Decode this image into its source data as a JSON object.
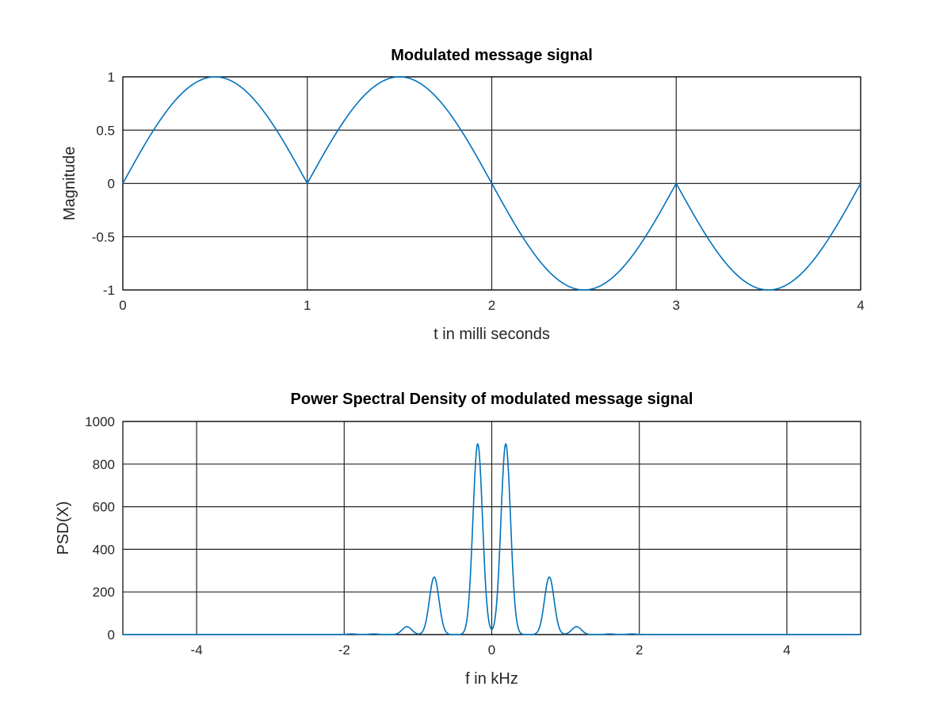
{
  "colors": {
    "line": "#0072BD",
    "grid": "#262626",
    "axes": "#000000",
    "background": "#ffffff"
  },
  "chart_data": [
    {
      "type": "line",
      "title": "Modulated message signal",
      "xlabel": "t in milli seconds",
      "ylabel": "Magnitude",
      "xlim": [
        0,
        4
      ],
      "ylim": [
        -1,
        1
      ],
      "xticks": [
        0,
        1,
        2,
        3,
        4
      ],
      "yticks": [
        -1,
        -0.5,
        0,
        0.5,
        1
      ],
      "xtick_labels": [
        "0",
        "1",
        "2",
        "3",
        "4"
      ],
      "ytick_labels": [
        "-1",
        "-0.5",
        "0",
        "0.5",
        "1"
      ],
      "grid": true,
      "series": [
        {
          "description": "|sin(pi t)| with sign +1 for 0<t<2 and -1 for 2<t<4",
          "x": [
            0,
            0.25,
            0.5,
            0.75,
            1.0,
            1.25,
            1.5,
            1.75,
            2.0,
            2.25,
            2.5,
            2.75,
            3.0,
            3.25,
            3.5,
            3.75,
            4.0
          ],
          "y": [
            0,
            0.707,
            1,
            0.707,
            0,
            0.707,
            1,
            0.707,
            0,
            -0.707,
            -1,
            -0.707,
            0,
            -0.707,
            -1,
            -0.707,
            0
          ]
        }
      ]
    },
    {
      "type": "line",
      "title": "Power Spectral Density of modulated message signal",
      "xlabel": "f in kHz",
      "ylabel": "PSD(X)",
      "xlim": [
        -5,
        5
      ],
      "ylim": [
        0,
        1000
      ],
      "xticks": [
        -4,
        -2,
        0,
        2,
        4
      ],
      "yticks": [
        0,
        200,
        400,
        600,
        800,
        1000
      ],
      "xtick_labels": [
        "-4",
        "-2",
        "0",
        "2",
        "4"
      ],
      "ytick_labels": [
        "0",
        "200",
        "400",
        "600",
        "800",
        "1000"
      ],
      "grid": true,
      "series": [
        {
          "peaks": [
            {
              "f": -1.9,
              "psd": 3
            },
            {
              "f": -1.6,
              "psd": 3
            },
            {
              "f": -1.15,
              "psd": 37
            },
            {
              "f": -0.78,
              "psd": 270
            },
            {
              "f": -0.19,
              "psd": 895
            },
            {
              "f": 0.19,
              "psd": 895
            },
            {
              "f": 0.78,
              "psd": 270
            },
            {
              "f": 1.15,
              "psd": 37
            },
            {
              "f": 1.6,
              "psd": 3
            },
            {
              "f": 1.9,
              "psd": 3
            }
          ]
        }
      ]
    }
  ]
}
